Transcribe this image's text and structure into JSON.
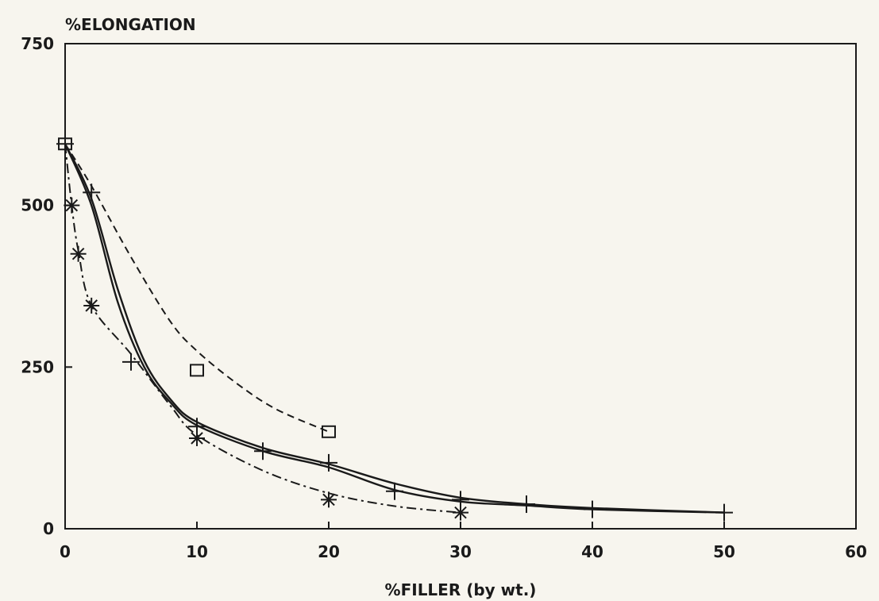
{
  "chart_data": {
    "type": "line",
    "title": "",
    "ylabel": "%ELONGATION",
    "xlabel": "%FILLER (by wt.)",
    "xlim": [
      0,
      60
    ],
    "ylim": [
      0,
      750
    ],
    "xticks": [
      "0",
      "10",
      "20",
      "30",
      "40",
      "50",
      "60"
    ],
    "yticks": [
      "0",
      "250",
      "500",
      "750"
    ],
    "grid": false,
    "series": [
      {
        "marker": "square",
        "linestyle": "dashed",
        "x": [
          0,
          10,
          20
        ],
        "y": [
          595,
          245,
          150
        ],
        "curve": [
          [
            0,
            595
          ],
          [
            2,
            530
          ],
          [
            5,
            420
          ],
          [
            8,
            320
          ],
          [
            10,
            275
          ],
          [
            13,
            225
          ],
          [
            16,
            185
          ],
          [
            20,
            150
          ]
        ]
      },
      {
        "marker": "plus",
        "linestyle": "solid",
        "x": [
          0,
          2,
          5,
          10,
          15,
          20,
          25,
          30,
          35,
          40,
          50
        ],
        "y": [
          595,
          520,
          258,
          158,
          120,
          102,
          58,
          45,
          38,
          30,
          25
        ],
        "curve": [
          [
            0,
            595
          ],
          [
            2,
            510
          ],
          [
            4,
            370
          ],
          [
            6,
            260
          ],
          [
            8,
            200
          ],
          [
            10,
            165
          ],
          [
            15,
            125
          ],
          [
            20,
            100
          ],
          [
            25,
            70
          ],
          [
            30,
            48
          ],
          [
            35,
            38
          ],
          [
            40,
            32
          ],
          [
            50,
            25
          ]
        ]
      },
      {
        "marker": "none",
        "linestyle": "solid",
        "x": [],
        "y": [],
        "curve": [
          [
            0,
            595
          ],
          [
            2,
            500
          ],
          [
            4,
            350
          ],
          [
            6,
            250
          ],
          [
            8,
            195
          ],
          [
            10,
            160
          ],
          [
            15,
            120
          ],
          [
            20,
            95
          ],
          [
            25,
            60
          ],
          [
            30,
            42
          ],
          [
            35,
            36
          ],
          [
            40,
            30
          ],
          [
            50,
            25
          ]
        ]
      },
      {
        "marker": "asterisk",
        "linestyle": "dash-dot",
        "x": [
          0.5,
          1,
          2,
          10,
          20,
          30
        ],
        "y": [
          500,
          425,
          345,
          140,
          45,
          25
        ],
        "curve": [
          [
            0,
            595
          ],
          [
            0.5,
            500
          ],
          [
            1,
            430
          ],
          [
            2,
            345
          ],
          [
            5,
            270
          ],
          [
            8,
            190
          ],
          [
            10,
            145
          ],
          [
            15,
            90
          ],
          [
            20,
            55
          ],
          [
            25,
            35
          ],
          [
            30,
            25
          ]
        ]
      }
    ]
  },
  "colors": {
    "ink": "#1a1a1a",
    "background": "#f7f5ee"
  }
}
